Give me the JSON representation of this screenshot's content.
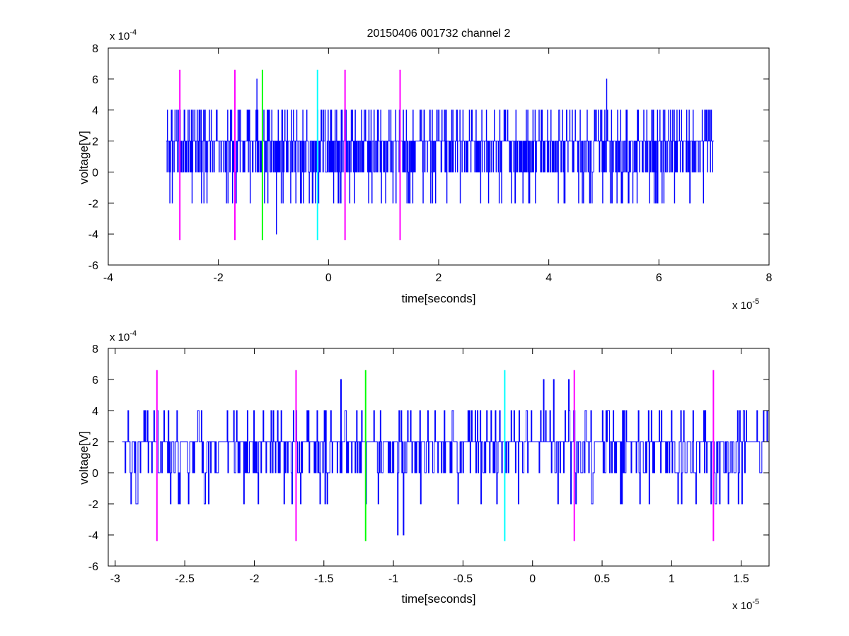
{
  "chart_data": [
    {
      "type": "line",
      "title": "20150406 001732 channel 2",
      "xlabel": "time[seconds]",
      "ylabel": "voltage[V]",
      "x_exponent_label": "x 10",
      "x_exponent": "-5",
      "y_exponent_label": "x 10",
      "y_exponent": "-4",
      "xlim": [
        -4,
        8
      ],
      "ylim": [
        -6,
        8
      ],
      "x_ticks": [
        -4,
        -2,
        0,
        2,
        4,
        6,
        8
      ],
      "x_tick_labels": [
        "-4",
        "-2",
        "0",
        "2",
        "4",
        "6",
        "8"
      ],
      "y_ticks": [
        -6,
        -4,
        -2,
        0,
        2,
        4,
        6,
        8
      ],
      "y_tick_labels": [
        "-6",
        "-4",
        "-2",
        "0",
        "2",
        "4",
        "6",
        "8"
      ],
      "grid": false,
      "series": [
        {
          "color": "#0000ff",
          "style": "step-line",
          "x_range": [
            -2.95,
            7.0
          ],
          "base": 2.0,
          "levels": [
            -4,
            -2,
            0,
            2,
            4,
            6
          ],
          "notable_points": [
            {
              "x": -1.3,
              "y": 6
            },
            {
              "x": -0.95,
              "y": -4
            },
            {
              "x": 5.05,
              "y": 6
            }
          ]
        }
      ],
      "markers": [
        {
          "x": -2.7,
          "color": "#ff00ff",
          "y_range": [
            -4.4,
            6.6
          ]
        },
        {
          "x": -1.7,
          "color": "#ff00ff",
          "y_range": [
            -4.4,
            6.6
          ]
        },
        {
          "x": -1.2,
          "color": "#00ff00",
          "y_range": [
            -4.4,
            6.6
          ]
        },
        {
          "x": -0.2,
          "color": "#00ffff",
          "y_range": [
            -4.4,
            6.6
          ]
        },
        {
          "x": 0.3,
          "color": "#ff00ff",
          "y_range": [
            -4.4,
            6.6
          ]
        },
        {
          "x": 1.3,
          "color": "#ff00ff",
          "y_range": [
            -4.4,
            6.6
          ]
        }
      ]
    },
    {
      "type": "line",
      "title": "",
      "xlabel": "time[seconds]",
      "ylabel": "voltage[V]",
      "x_exponent_label": "x 10",
      "x_exponent": "-5",
      "y_exponent_label": "x 10",
      "y_exponent": "-4",
      "xlim": [
        -3.05,
        1.7
      ],
      "ylim": [
        -6,
        8
      ],
      "x_ticks": [
        -3,
        -2.5,
        -2,
        -1.5,
        -1,
        -0.5,
        0,
        0.5,
        1,
        1.5
      ],
      "x_tick_labels": [
        "-3",
        "-2.5",
        "-2",
        "-1.5",
        "-1",
        "-0.5",
        "0",
        "0.5",
        "1",
        "1.5"
      ],
      "y_ticks": [
        -6,
        -4,
        -2,
        0,
        2,
        4,
        6,
        8
      ],
      "y_tick_labels": [
        "-6",
        "-4",
        "-2",
        "0",
        "2",
        "4",
        "6",
        "8"
      ],
      "grid": false,
      "series": [
        {
          "color": "#0000ff",
          "style": "step-line",
          "x_range": [
            -2.95,
            1.7
          ],
          "base": 2.0,
          "levels": [
            -4,
            -2,
            0,
            2,
            4,
            6
          ],
          "notable_points": [
            {
              "x": -1.38,
              "y": 6
            },
            {
              "x": -0.97,
              "y": -4
            },
            {
              "x": -0.93,
              "y": -4
            },
            {
              "x": -1.2,
              "y": -2
            },
            {
              "x": 0.08,
              "y": 6
            },
            {
              "x": 0.15,
              "y": 6
            },
            {
              "x": 0.26,
              "y": 6
            }
          ]
        }
      ],
      "markers": [
        {
          "x": -2.7,
          "color": "#ff00ff",
          "y_range": [
            -4.4,
            6.6
          ]
        },
        {
          "x": -1.7,
          "color": "#ff00ff",
          "y_range": [
            -4.4,
            6.6
          ]
        },
        {
          "x": -1.2,
          "color": "#00ff00",
          "y_range": [
            -4.4,
            6.6
          ]
        },
        {
          "x": -0.2,
          "color": "#00ffff",
          "y_range": [
            -4.4,
            6.6
          ]
        },
        {
          "x": 0.3,
          "color": "#ff00ff",
          "y_range": [
            -4.4,
            6.6
          ]
        },
        {
          "x": 1.3,
          "color": "#ff00ff",
          "y_range": [
            -4.4,
            6.6
          ]
        }
      ]
    }
  ]
}
